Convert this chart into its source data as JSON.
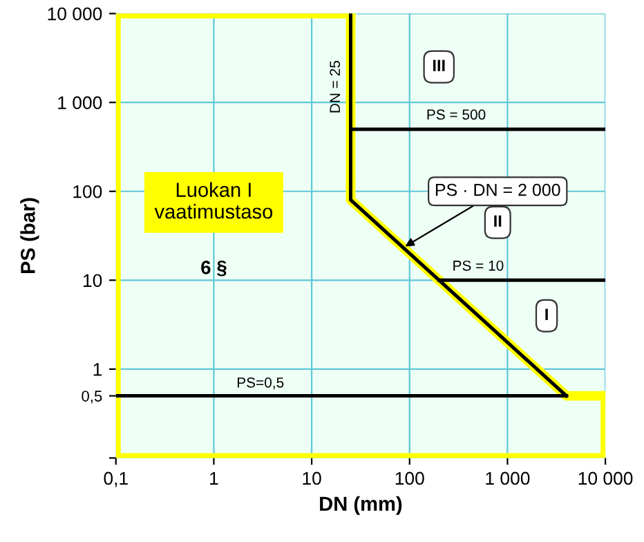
{
  "chart_data": {
    "type": "line",
    "xlabel": "DN (mm)",
    "ylabel": "PS (bar)",
    "log": "xy",
    "grid": true,
    "line_style": "solid",
    "marker": "none",
    "xlim": [
      0.1,
      10000
    ],
    "ylim": [
      0.1,
      10000
    ],
    "xticks": [
      {
        "value": 0.1,
        "label": "0,1"
      },
      1,
      10,
      100,
      {
        "value": 1000,
        "label": "1 000"
      },
      {
        "value": 10000,
        "label": "10 000"
      }
    ],
    "yticks": [
      {
        "value": 0.1,
        "label": null
      },
      {
        "value": 0.5,
        "label": "0,5"
      },
      1,
      10,
      100,
      {
        "value": 1000,
        "label": "1 000"
      },
      {
        "value": 10000,
        "label": "10 000"
      }
    ],
    "series": [
      {
        "color": "#ffff00",
        "x": [
          10000,
          10000,
          0.1,
          0.1,
          25
        ],
        "values": [
          0.5,
          0.1,
          0.1,
          10000,
          10000
        ]
      },
      {
        "color": "#ffff00",
        "x": [
          25,
          25,
          4000,
          10000
        ],
        "values": [
          10000,
          80,
          0.5,
          0.5
        ]
      },
      {
        "color": "#000000",
        "x": [
          25,
          25,
          4000
        ],
        "values": [
          10000,
          80,
          0.5
        ]
      },
      {
        "color": "#000000",
        "x": [
          25,
          10000
        ],
        "values": [
          500,
          500
        ]
      },
      {
        "color": "#000000",
        "x": [
          200,
          10000
        ],
        "values": [
          10,
          10
        ]
      },
      {
        "color": "#000000",
        "x": [
          0.1,
          4000
        ],
        "values": [
          0.5,
          0.5
        ]
      }
    ],
    "annotations": [
      "DN = 25",
      "PS = 500",
      "PS = 10",
      "PS=0,5",
      {
        "text": "PS · DN = 2 000",
        "x": 90,
        "y": 24
      },
      "III",
      "II",
      "I",
      "Luokan I\nvaatimustaso",
      "6 §"
    ]
  }
}
